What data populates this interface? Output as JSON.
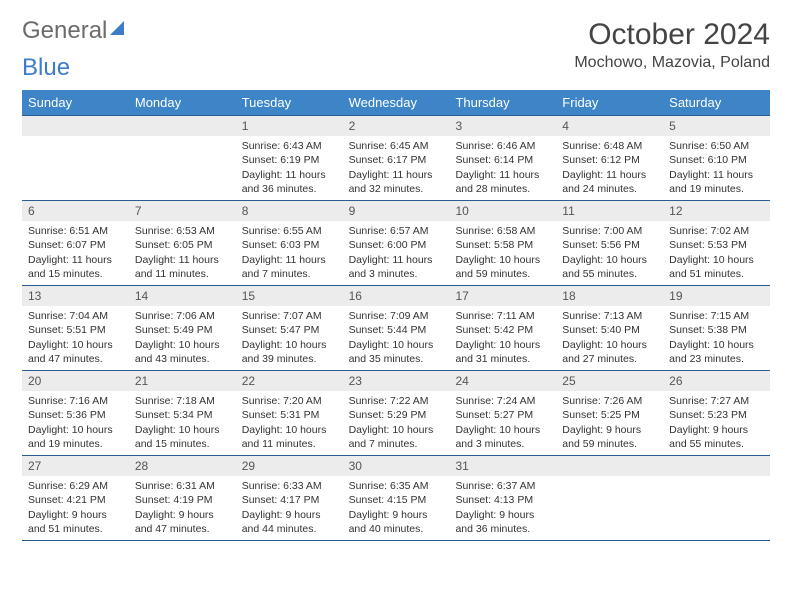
{
  "brand": {
    "part1": "General",
    "part2": "Blue"
  },
  "title": "October 2024",
  "location": "Mochowo, Mazovia, Poland",
  "colors": {
    "header_bg": "#3d85c6",
    "header_text": "#ffffff",
    "divider": "#2a5d8f",
    "daynum_bg": "#ececec",
    "body_text": "#333333",
    "logo_gray": "#6b6b6b",
    "logo_blue": "#3d7cc9",
    "page_bg": "#ffffff"
  },
  "day_headers": [
    "Sunday",
    "Monday",
    "Tuesday",
    "Wednesday",
    "Thursday",
    "Friday",
    "Saturday"
  ],
  "weeks": [
    [
      null,
      null,
      {
        "n": "1",
        "sr": "6:43 AM",
        "ss": "6:19 PM",
        "dl": "11 hours and 36 minutes."
      },
      {
        "n": "2",
        "sr": "6:45 AM",
        "ss": "6:17 PM",
        "dl": "11 hours and 32 minutes."
      },
      {
        "n": "3",
        "sr": "6:46 AM",
        "ss": "6:14 PM",
        "dl": "11 hours and 28 minutes."
      },
      {
        "n": "4",
        "sr": "6:48 AM",
        "ss": "6:12 PM",
        "dl": "11 hours and 24 minutes."
      },
      {
        "n": "5",
        "sr": "6:50 AM",
        "ss": "6:10 PM",
        "dl": "11 hours and 19 minutes."
      }
    ],
    [
      {
        "n": "6",
        "sr": "6:51 AM",
        "ss": "6:07 PM",
        "dl": "11 hours and 15 minutes."
      },
      {
        "n": "7",
        "sr": "6:53 AM",
        "ss": "6:05 PM",
        "dl": "11 hours and 11 minutes."
      },
      {
        "n": "8",
        "sr": "6:55 AM",
        "ss": "6:03 PM",
        "dl": "11 hours and 7 minutes."
      },
      {
        "n": "9",
        "sr": "6:57 AM",
        "ss": "6:00 PM",
        "dl": "11 hours and 3 minutes."
      },
      {
        "n": "10",
        "sr": "6:58 AM",
        "ss": "5:58 PM",
        "dl": "10 hours and 59 minutes."
      },
      {
        "n": "11",
        "sr": "7:00 AM",
        "ss": "5:56 PM",
        "dl": "10 hours and 55 minutes."
      },
      {
        "n": "12",
        "sr": "7:02 AM",
        "ss": "5:53 PM",
        "dl": "10 hours and 51 minutes."
      }
    ],
    [
      {
        "n": "13",
        "sr": "7:04 AM",
        "ss": "5:51 PM",
        "dl": "10 hours and 47 minutes."
      },
      {
        "n": "14",
        "sr": "7:06 AM",
        "ss": "5:49 PM",
        "dl": "10 hours and 43 minutes."
      },
      {
        "n": "15",
        "sr": "7:07 AM",
        "ss": "5:47 PM",
        "dl": "10 hours and 39 minutes."
      },
      {
        "n": "16",
        "sr": "7:09 AM",
        "ss": "5:44 PM",
        "dl": "10 hours and 35 minutes."
      },
      {
        "n": "17",
        "sr": "7:11 AM",
        "ss": "5:42 PM",
        "dl": "10 hours and 31 minutes."
      },
      {
        "n": "18",
        "sr": "7:13 AM",
        "ss": "5:40 PM",
        "dl": "10 hours and 27 minutes."
      },
      {
        "n": "19",
        "sr": "7:15 AM",
        "ss": "5:38 PM",
        "dl": "10 hours and 23 minutes."
      }
    ],
    [
      {
        "n": "20",
        "sr": "7:16 AM",
        "ss": "5:36 PM",
        "dl": "10 hours and 19 minutes."
      },
      {
        "n": "21",
        "sr": "7:18 AM",
        "ss": "5:34 PM",
        "dl": "10 hours and 15 minutes."
      },
      {
        "n": "22",
        "sr": "7:20 AM",
        "ss": "5:31 PM",
        "dl": "10 hours and 11 minutes."
      },
      {
        "n": "23",
        "sr": "7:22 AM",
        "ss": "5:29 PM",
        "dl": "10 hours and 7 minutes."
      },
      {
        "n": "24",
        "sr": "7:24 AM",
        "ss": "5:27 PM",
        "dl": "10 hours and 3 minutes."
      },
      {
        "n": "25",
        "sr": "7:26 AM",
        "ss": "5:25 PM",
        "dl": "9 hours and 59 minutes."
      },
      {
        "n": "26",
        "sr": "7:27 AM",
        "ss": "5:23 PM",
        "dl": "9 hours and 55 minutes."
      }
    ],
    [
      {
        "n": "27",
        "sr": "6:29 AM",
        "ss": "4:21 PM",
        "dl": "9 hours and 51 minutes."
      },
      {
        "n": "28",
        "sr": "6:31 AM",
        "ss": "4:19 PM",
        "dl": "9 hours and 47 minutes."
      },
      {
        "n": "29",
        "sr": "6:33 AM",
        "ss": "4:17 PM",
        "dl": "9 hours and 44 minutes."
      },
      {
        "n": "30",
        "sr": "6:35 AM",
        "ss": "4:15 PM",
        "dl": "9 hours and 40 minutes."
      },
      {
        "n": "31",
        "sr": "6:37 AM",
        "ss": "4:13 PM",
        "dl": "9 hours and 36 minutes."
      },
      null,
      null
    ]
  ],
  "labels": {
    "sunrise": "Sunrise:",
    "sunset": "Sunset:",
    "daylight": "Daylight:"
  }
}
